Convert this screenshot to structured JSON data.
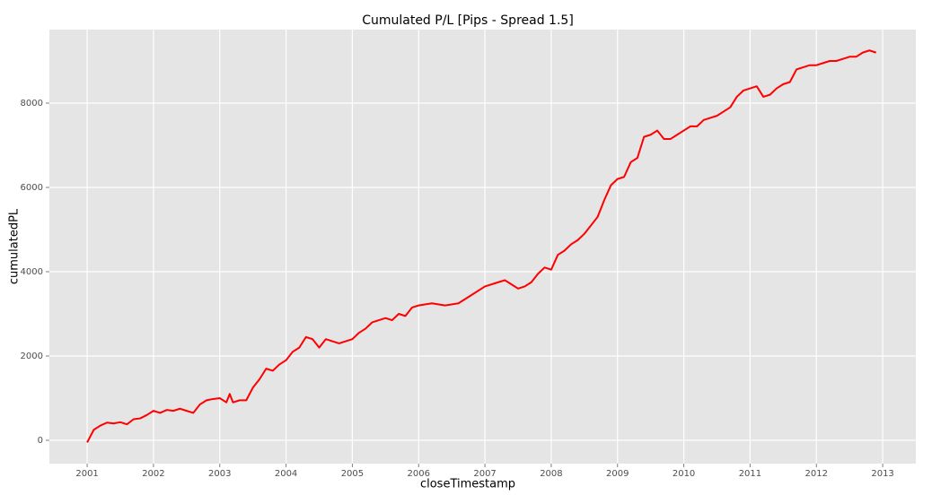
{
  "chart_data": {
    "type": "line",
    "title": "Cumulated P/L [Pips - Spread 1.5]",
    "x_label": "closeTimestamp",
    "y_label": "cumulatedPL",
    "x": [
      2001.0,
      2001.05,
      2001.1,
      2001.2,
      2001.3,
      2001.4,
      2001.5,
      2001.6,
      2001.7,
      2001.8,
      2001.9,
      2002.0,
      2002.1,
      2002.2,
      2002.3,
      2002.4,
      2002.5,
      2002.6,
      2002.7,
      2002.8,
      2002.9,
      2003.0,
      2003.1,
      2003.15,
      2003.2,
      2003.3,
      2003.4,
      2003.5,
      2003.6,
      2003.7,
      2003.8,
      2003.9,
      2004.0,
      2004.1,
      2004.2,
      2004.3,
      2004.4,
      2004.5,
      2004.6,
      2004.7,
      2004.8,
      2004.9,
      2005.0,
      2005.1,
      2005.2,
      2005.3,
      2005.4,
      2005.5,
      2005.6,
      2005.7,
      2005.8,
      2005.9,
      2006.0,
      2006.2,
      2006.4,
      2006.6,
      2006.8,
      2007.0,
      2007.2,
      2007.3,
      2007.4,
      2007.5,
      2007.6,
      2007.7,
      2007.8,
      2007.9,
      2008.0,
      2008.1,
      2008.2,
      2008.3,
      2008.4,
      2008.5,
      2008.6,
      2008.7,
      2008.8,
      2008.9,
      2009.0,
      2009.1,
      2009.2,
      2009.3,
      2009.4,
      2009.5,
      2009.6,
      2009.7,
      2009.8,
      2009.9,
      2010.0,
      2010.1,
      2010.2,
      2010.3,
      2010.4,
      2010.5,
      2010.6,
      2010.7,
      2010.8,
      2010.9,
      2011.0,
      2011.1,
      2011.2,
      2011.3,
      2011.4,
      2011.5,
      2011.6,
      2011.7,
      2011.8,
      2011.9,
      2012.0,
      2012.1,
      2012.2,
      2012.3,
      2012.4,
      2012.5,
      2012.6,
      2012.7,
      2012.8,
      2012.9
    ],
    "series": [
      {
        "name": "cumulatedPL",
        "color": "#ff0000",
        "values": [
          -50,
          100,
          250,
          350,
          420,
          400,
          430,
          380,
          500,
          520,
          600,
          700,
          650,
          720,
          700,
          750,
          700,
          650,
          850,
          950,
          980,
          1000,
          900,
          1100,
          900,
          950,
          950,
          1250,
          1450,
          1700,
          1650,
          1800,
          1900,
          2100,
          2200,
          2450,
          2400,
          2200,
          2400,
          2350,
          2300,
          2350,
          2400,
          2550,
          2650,
          2800,
          2850,
          2900,
          2850,
          3000,
          2950,
          3150,
          3200,
          3250,
          3200,
          3250,
          3450,
          3650,
          3750,
          3800,
          3700,
          3600,
          3650,
          3750,
          3950,
          4100,
          4050,
          4400,
          4500,
          4650,
          4750,
          4900,
          5100,
          5300,
          5700,
          6050,
          6200,
          6250,
          6600,
          6700,
          7200,
          7250,
          7350,
          7150,
          7150,
          7250,
          7350,
          7450,
          7450,
          7600,
          7650,
          7700,
          7800,
          7900,
          8150,
          8300,
          8350,
          8400,
          8150,
          8200,
          8350,
          8450,
          8500,
          8800,
          8850,
          8900,
          8900,
          8950,
          9000,
          9000,
          9050,
          9100,
          9100,
          9200,
          9250,
          9200
        ]
      }
    ],
    "xlim": [
      2000.43,
      2013.5
    ],
    "xticks": [
      2001,
      2002,
      2003,
      2004,
      2005,
      2006,
      2007,
      2008,
      2009,
      2010,
      2011,
      2012,
      2013
    ],
    "ylim": [
      -553,
      9745
    ],
    "yticks": [
      0,
      2000,
      4000,
      6000,
      8000
    ],
    "grid": true
  }
}
